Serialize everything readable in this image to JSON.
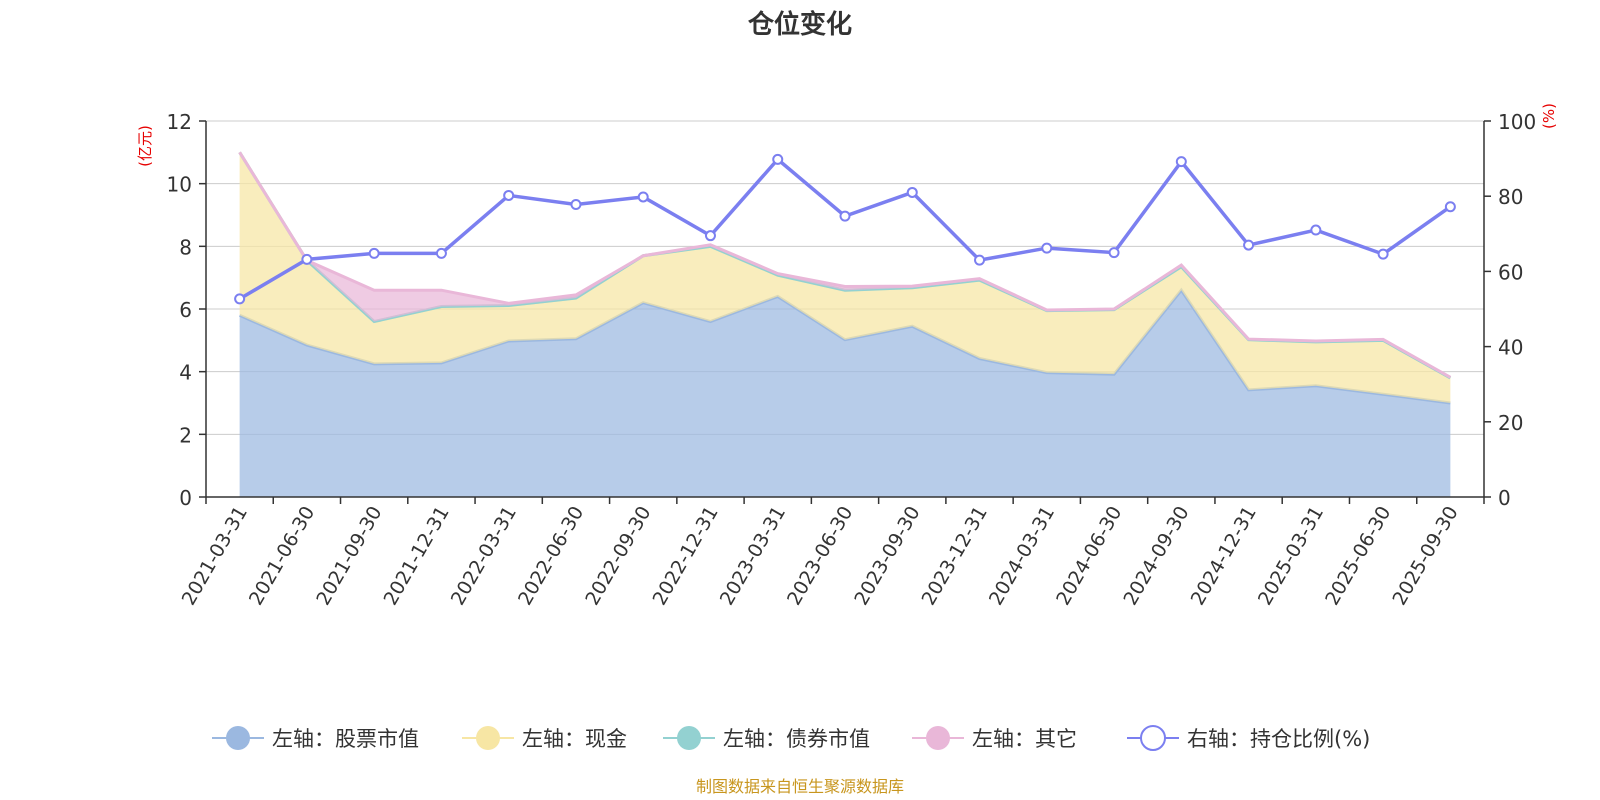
{
  "chart_data": {
    "type": "area",
    "title": "仓位变化",
    "categories": [
      "2021-03-31",
      "2021-06-30",
      "2021-09-30",
      "2021-12-31",
      "2022-03-31",
      "2022-06-30",
      "2022-09-30",
      "2022-12-31",
      "2023-03-31",
      "2023-06-30",
      "2023-09-30",
      "2023-12-31",
      "2024-03-31",
      "2024-06-30",
      "2024-09-30",
      "2024-12-31",
      "2025-03-31",
      "2025-06-30",
      "2025-09-30"
    ],
    "left_axis": {
      "unit": "(亿元)",
      "ylim": [
        0,
        12
      ],
      "ticks": [
        0,
        2,
        4,
        6,
        8,
        10,
        12
      ]
    },
    "right_axis": {
      "unit": "(%)",
      "ylim": [
        0,
        100
      ],
      "ticks": [
        0,
        20,
        40,
        60,
        80,
        100
      ]
    },
    "grid": true,
    "legend_position": "bottom",
    "series": [
      {
        "name": "左轴：股票市值",
        "axis": "left",
        "kind": "area-stacked",
        "color": "#9bb8e0",
        "values": [
          5.8,
          4.85,
          4.25,
          4.28,
          4.98,
          5.05,
          6.2,
          5.6,
          6.4,
          5.02,
          5.45,
          4.42,
          3.97,
          3.92,
          6.6,
          3.42,
          3.55,
          3.28,
          3.0
        ]
      },
      {
        "name": "左轴：现金",
        "axis": "left",
        "kind": "area-stacked",
        "color": "#f7e6a4",
        "values": [
          5.2,
          2.7,
          1.35,
          1.8,
          1.13,
          1.3,
          1.5,
          2.4,
          0.68,
          1.58,
          1.23,
          2.5,
          1.98,
          2.06,
          0.75,
          1.6,
          1.4,
          1.72,
          0.8
        ]
      },
      {
        "name": "左轴：债券市值",
        "axis": "left",
        "kind": "area-stacked",
        "color": "#93d1d1",
        "values": [
          0,
          0,
          0,
          0,
          0,
          0,
          0,
          0,
          0,
          0,
          0,
          0,
          0,
          0,
          0,
          0,
          0,
          0,
          0
        ]
      },
      {
        "name": "左轴：其它",
        "axis": "left",
        "kind": "area-stacked",
        "color": "#e9b7d8",
        "values": [
          0,
          0,
          1.0,
          0.52,
          0.07,
          0.1,
          0,
          0.05,
          0.05,
          0.12,
          0.05,
          0.05,
          0.02,
          0.02,
          0.05,
          0.02,
          0.03,
          0.03,
          0.02
        ]
      },
      {
        "name": "右轴：持仓比例(%)",
        "axis": "right",
        "kind": "line",
        "color": "#7b7ff0",
        "values": [
          52.7,
          63.2,
          64.8,
          64.8,
          80.2,
          77.8,
          79.8,
          69.5,
          89.8,
          74.7,
          81.0,
          63.0,
          66.2,
          65.0,
          89.2,
          67.0,
          71.0,
          64.6,
          77.2
        ]
      }
    ]
  },
  "footer": {
    "source": "制图数据来自恒生聚源数据库"
  }
}
